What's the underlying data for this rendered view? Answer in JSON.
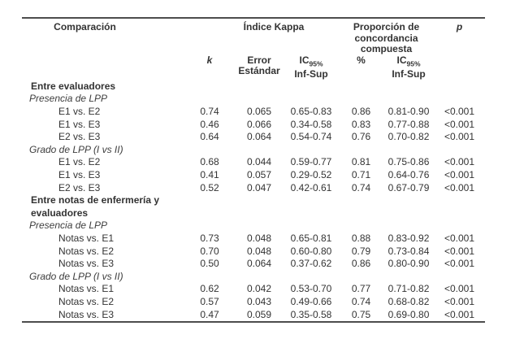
{
  "colors": {
    "text": "#333333",
    "border": "#4d4d4d"
  },
  "header": {
    "comparacion": "Comparación",
    "indice_kappa": "Índice Kappa",
    "proporcion": "Proporción de concordancia compuesta",
    "p": "p",
    "k": "k",
    "error_estandar": "Error Estándar",
    "ic": "IC",
    "ic_sub": "95%",
    "inf_sup": "Inf-Sup",
    "pct": "%"
  },
  "rows": [
    {
      "type": "section",
      "label": "Entre evaluadores"
    },
    {
      "type": "subsection",
      "label": "Presencia de LPP"
    },
    {
      "type": "data",
      "label": "E1 vs. E2",
      "k": "0.74",
      "error": "0.065",
      "ic_kappa": "0.65-0.83",
      "pct": "0.86",
      "ic_prop": "0.81-0.90",
      "p": "<0.001"
    },
    {
      "type": "data",
      "label": "E1 vs. E3",
      "k": "0.46",
      "error": "0.066",
      "ic_kappa": "0.34-0.58",
      "pct": "0.83",
      "ic_prop": "0.77-0.88",
      "p": "<0.001"
    },
    {
      "type": "data",
      "label": "E2 vs. E3",
      "k": "0.64",
      "error": "0.064",
      "ic_kappa": "0.54-0.74",
      "pct": "0.76",
      "ic_prop": "0.70-0.82",
      "p": "<0.001"
    },
    {
      "type": "subsection",
      "label": "Grado de LPP (I vs II)"
    },
    {
      "type": "data",
      "label": "E1 vs. E2",
      "k": "0.68",
      "error": "0.044",
      "ic_kappa": "0.59-0.77",
      "pct": "0.81",
      "ic_prop": "0.75-0.86",
      "p": "<0.001"
    },
    {
      "type": "data",
      "label": "E1 vs. E3",
      "k": "0.41",
      "error": "0.057",
      "ic_kappa": "0.29-0.52",
      "pct": "0.71",
      "ic_prop": "0.64-0.76",
      "p": "<0.001"
    },
    {
      "type": "data",
      "label": "E2 vs. E3",
      "k": "0.52",
      "error": "0.047",
      "ic_kappa": "0.42-0.61",
      "pct": "0.74",
      "ic_prop": "0.67-0.79",
      "p": "<0.001"
    },
    {
      "type": "section",
      "label": "Entre notas de enfermería y evaluadores"
    },
    {
      "type": "subsection",
      "label": "Presencia de LPP"
    },
    {
      "type": "data",
      "label": "Notas vs. E1",
      "k": "0.73",
      "error": "0.048",
      "ic_kappa": "0.65-0.81",
      "pct": "0.88",
      "ic_prop": "0.83-0.92",
      "p": "<0.001"
    },
    {
      "type": "data",
      "label": "Notas vs. E2",
      "k": "0.70",
      "error": "0.048",
      "ic_kappa": "0.60-0.80",
      "pct": "0.79",
      "ic_prop": "0.73-0.84",
      "p": "<0.001"
    },
    {
      "type": "data",
      "label": "Notas vs. E3",
      "k": "0.50",
      "error": "0.064",
      "ic_kappa": "0.37-0.62",
      "pct": "0.86",
      "ic_prop": "0.80-0.90",
      "p": "<0.001"
    },
    {
      "type": "subsection",
      "label": "Grado de LPP (I vs II)"
    },
    {
      "type": "data",
      "label": "Notas vs. E1",
      "k": "0.62",
      "error": "0.042",
      "ic_kappa": "0.53-0.70",
      "pct": "0.77",
      "ic_prop": "0.71-0.82",
      "p": "<0.001"
    },
    {
      "type": "data",
      "label": "Notas vs. E2",
      "k": "0.57",
      "error": "0.043",
      "ic_kappa": "0.49-0.66",
      "pct": "0.74",
      "ic_prop": "0.68-0.82",
      "p": "<0.001"
    },
    {
      "type": "data",
      "label": "Notas vs. E3",
      "k": "0.47",
      "error": "0.059",
      "ic_kappa": "0.35-0.58",
      "pct": "0.75",
      "ic_prop": "0.69-0.80",
      "p": "<0.001"
    }
  ]
}
